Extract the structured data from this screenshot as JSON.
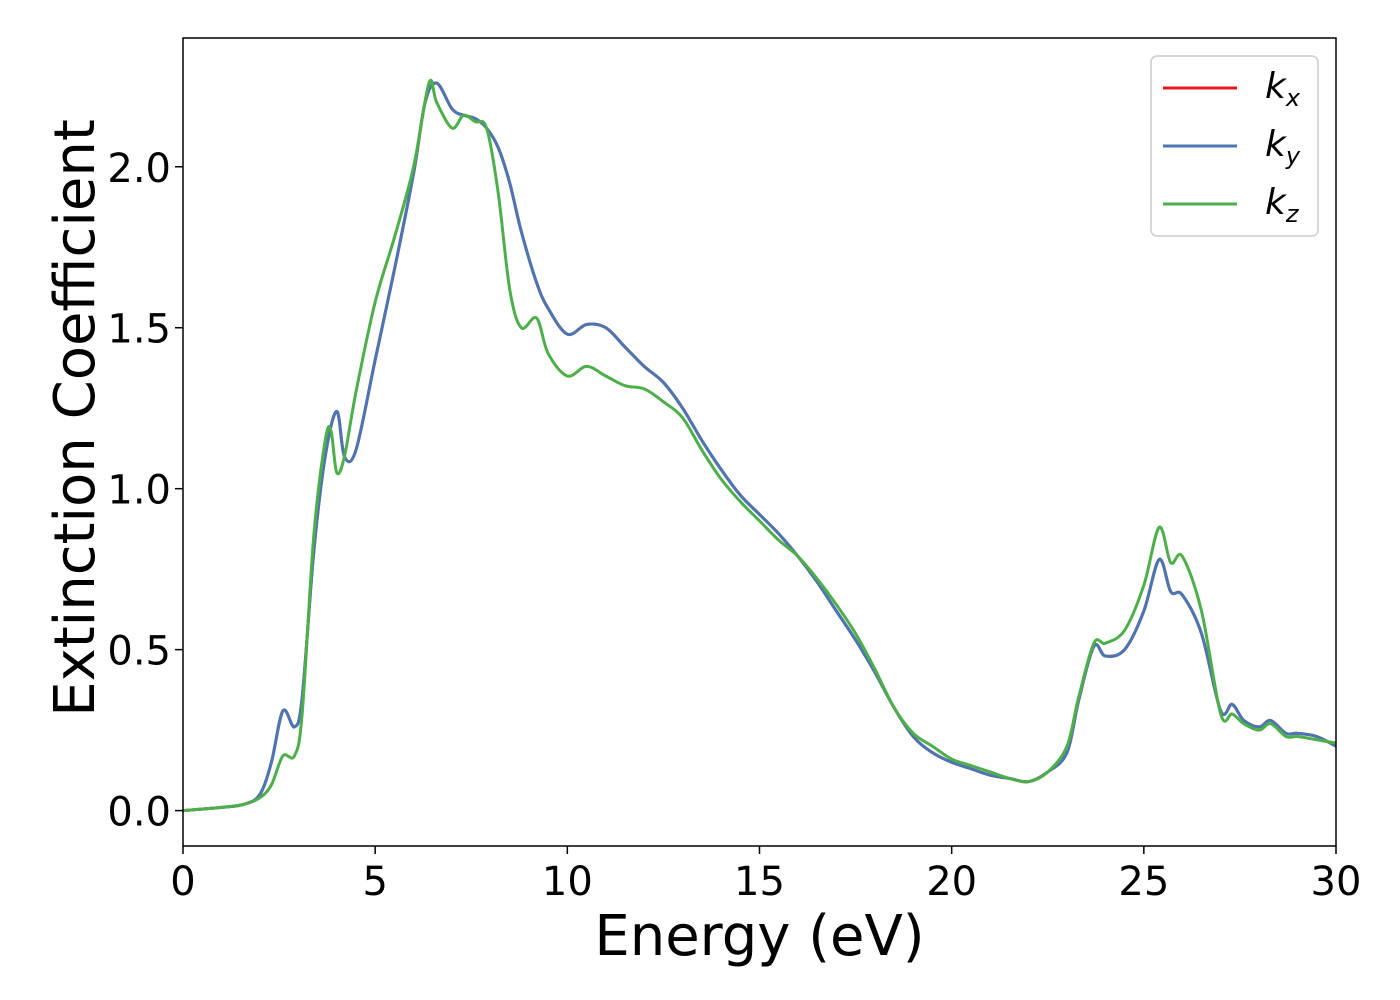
{
  "chart_data": {
    "type": "line",
    "title": "",
    "xlabel": "Energy (eV)",
    "ylabel": "Extinction Coefficient",
    "xlim": [
      0,
      30
    ],
    "ylim": [
      -0.11,
      2.4
    ],
    "xticks": [
      0,
      5,
      10,
      15,
      20,
      25,
      30
    ],
    "yticks": [
      0.0,
      0.5,
      1.0,
      1.5,
      2.0
    ],
    "xtick_labels": [
      "0",
      "5",
      "10",
      "15",
      "20",
      "25",
      "30"
    ],
    "ytick_labels": [
      "0.0",
      "0.5",
      "1.0",
      "1.5",
      "2.0"
    ],
    "grid": false,
    "legend_position": "top-right",
    "series": [
      {
        "name": "k_x",
        "label_base": "k",
        "label_sub": "x",
        "color": "#e41a1c",
        "x": [
          0,
          1.0,
          1.6,
          2.0,
          2.3,
          2.6,
          2.9,
          3.1,
          3.4,
          3.7,
          4.0,
          4.2,
          4.5,
          5.0,
          5.5,
          6.0,
          6.3,
          6.6,
          7.0,
          7.3,
          7.6,
          7.9,
          8.2,
          8.5,
          8.8,
          9.2,
          9.5,
          10.0,
          10.5,
          11.0,
          11.5,
          12.0,
          12.5,
          13.0,
          13.5,
          14.0,
          14.5,
          15.0,
          15.5,
          16.0,
          16.5,
          17.0,
          17.5,
          18.0,
          18.5,
          19.0,
          19.5,
          20.0,
          20.5,
          21.0,
          21.5,
          22.0,
          22.5,
          23.0,
          23.3,
          23.7,
          24.0,
          24.5,
          25.0,
          25.4,
          25.7,
          26.0,
          26.5,
          27.0,
          27.3,
          27.6,
          28.0,
          28.3,
          28.7,
          29.0,
          29.5,
          30.0
        ],
        "y": [
          0.0,
          0.01,
          0.02,
          0.05,
          0.15,
          0.31,
          0.26,
          0.35,
          0.8,
          1.1,
          1.24,
          1.1,
          1.12,
          1.4,
          1.68,
          1.98,
          2.2,
          2.26,
          2.18,
          2.16,
          2.15,
          2.12,
          2.06,
          1.95,
          1.8,
          1.64,
          1.56,
          1.48,
          1.51,
          1.5,
          1.44,
          1.38,
          1.33,
          1.25,
          1.15,
          1.06,
          0.98,
          0.92,
          0.86,
          0.79,
          0.71,
          0.62,
          0.53,
          0.43,
          0.32,
          0.23,
          0.18,
          0.15,
          0.13,
          0.11,
          0.1,
          0.09,
          0.12,
          0.18,
          0.34,
          0.51,
          0.48,
          0.5,
          0.62,
          0.78,
          0.68,
          0.67,
          0.55,
          0.31,
          0.33,
          0.28,
          0.26,
          0.28,
          0.24,
          0.24,
          0.23,
          0.2
        ]
      },
      {
        "name": "k_y",
        "label_base": "k",
        "label_sub": "y",
        "color": "#4a77b4",
        "x": [
          0,
          1.0,
          1.6,
          2.0,
          2.3,
          2.6,
          2.9,
          3.1,
          3.4,
          3.7,
          4.0,
          4.2,
          4.5,
          5.0,
          5.5,
          6.0,
          6.3,
          6.6,
          7.0,
          7.3,
          7.6,
          7.9,
          8.2,
          8.5,
          8.8,
          9.2,
          9.5,
          10.0,
          10.5,
          11.0,
          11.5,
          12.0,
          12.5,
          13.0,
          13.5,
          14.0,
          14.5,
          15.0,
          15.5,
          16.0,
          16.5,
          17.0,
          17.5,
          18.0,
          18.5,
          19.0,
          19.5,
          20.0,
          20.5,
          21.0,
          21.5,
          22.0,
          22.5,
          23.0,
          23.3,
          23.7,
          24.0,
          24.5,
          25.0,
          25.4,
          25.7,
          26.0,
          26.5,
          27.0,
          27.3,
          27.6,
          28.0,
          28.3,
          28.7,
          29.0,
          29.5,
          30.0
        ],
        "y": [
          0.0,
          0.01,
          0.02,
          0.05,
          0.15,
          0.31,
          0.26,
          0.35,
          0.8,
          1.1,
          1.24,
          1.1,
          1.12,
          1.4,
          1.68,
          1.98,
          2.2,
          2.26,
          2.18,
          2.16,
          2.15,
          2.12,
          2.06,
          1.95,
          1.8,
          1.64,
          1.56,
          1.48,
          1.51,
          1.5,
          1.44,
          1.38,
          1.33,
          1.25,
          1.15,
          1.06,
          0.98,
          0.92,
          0.86,
          0.79,
          0.71,
          0.62,
          0.53,
          0.43,
          0.32,
          0.23,
          0.18,
          0.15,
          0.13,
          0.11,
          0.1,
          0.09,
          0.12,
          0.18,
          0.34,
          0.51,
          0.48,
          0.5,
          0.62,
          0.78,
          0.68,
          0.67,
          0.55,
          0.31,
          0.33,
          0.28,
          0.26,
          0.28,
          0.24,
          0.24,
          0.23,
          0.2
        ]
      },
      {
        "name": "k_z",
        "label_base": "k",
        "label_sub": "z",
        "color": "#4daf4a",
        "x": [
          0,
          1.0,
          1.6,
          2.0,
          2.3,
          2.6,
          2.9,
          3.1,
          3.4,
          3.7,
          3.85,
          4.0,
          4.2,
          4.5,
          5.0,
          5.5,
          6.0,
          6.4,
          6.6,
          7.0,
          7.3,
          7.6,
          7.9,
          8.2,
          8.5,
          8.8,
          9.2,
          9.5,
          10.0,
          10.5,
          11.0,
          11.5,
          12.0,
          12.5,
          13.0,
          13.5,
          14.0,
          14.5,
          15.0,
          15.5,
          16.0,
          16.5,
          17.0,
          17.5,
          18.0,
          18.5,
          19.0,
          19.5,
          20.0,
          20.5,
          21.0,
          21.5,
          22.0,
          22.5,
          23.0,
          23.3,
          23.7,
          24.0,
          24.5,
          25.0,
          25.4,
          25.7,
          26.0,
          26.5,
          27.0,
          27.3,
          27.6,
          28.0,
          28.3,
          28.7,
          29.0,
          29.5,
          30.0
        ],
        "y": [
          0.0,
          0.01,
          0.02,
          0.04,
          0.08,
          0.17,
          0.17,
          0.3,
          0.85,
          1.15,
          1.18,
          1.05,
          1.1,
          1.3,
          1.58,
          1.78,
          2.0,
          2.26,
          2.2,
          2.12,
          2.16,
          2.14,
          2.12,
          1.92,
          1.62,
          1.5,
          1.53,
          1.42,
          1.35,
          1.38,
          1.35,
          1.32,
          1.31,
          1.27,
          1.22,
          1.12,
          1.03,
          0.96,
          0.9,
          0.84,
          0.79,
          0.72,
          0.64,
          0.55,
          0.44,
          0.32,
          0.24,
          0.2,
          0.16,
          0.14,
          0.12,
          0.1,
          0.09,
          0.12,
          0.2,
          0.35,
          0.52,
          0.52,
          0.56,
          0.7,
          0.88,
          0.77,
          0.79,
          0.62,
          0.3,
          0.3,
          0.27,
          0.25,
          0.27,
          0.23,
          0.23,
          0.22,
          0.21
        ]
      }
    ]
  }
}
